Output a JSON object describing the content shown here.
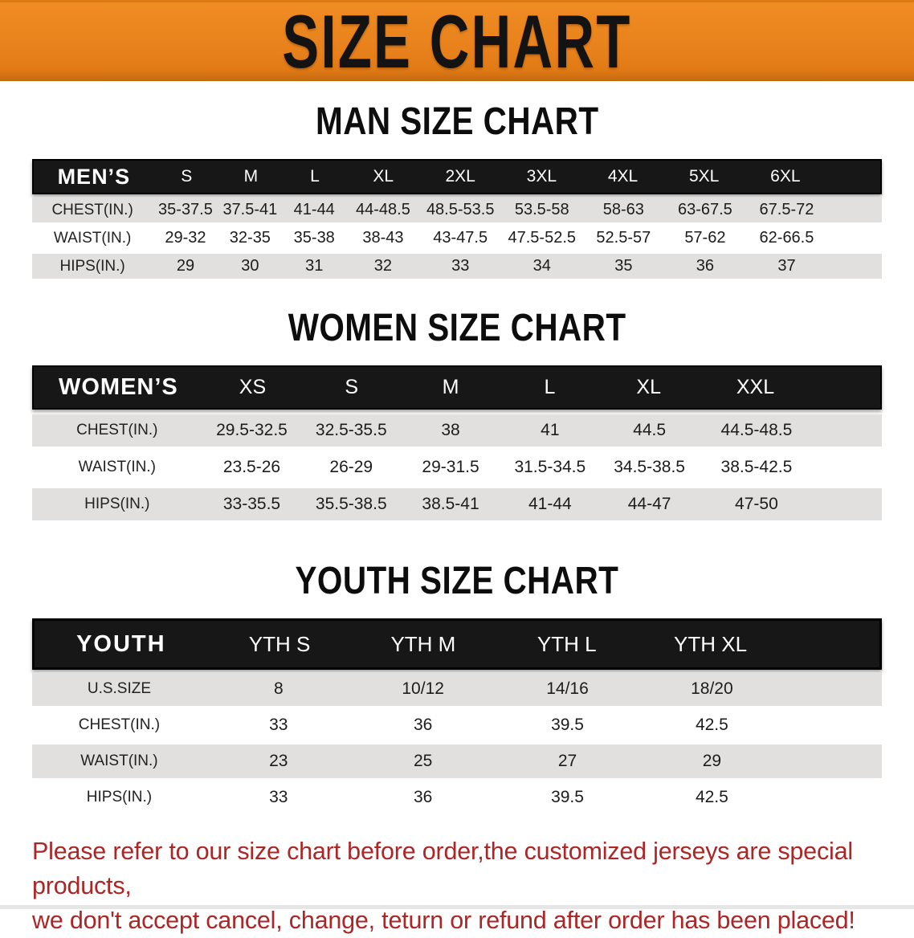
{
  "banner": {
    "title": "SIZE CHART"
  },
  "sections": [
    {
      "heading": "MAN SIZE CHART",
      "table": {
        "label": "MEN’S",
        "columns": [
          "S",
          "M",
          "L",
          "XL",
          "2XL",
          "3XL",
          "4XL",
          "5XL",
          "6XL"
        ],
        "rows": [
          {
            "label": "CHEST(IN.)",
            "values": [
              "35-37.5",
              "37.5-41",
              "41-44",
              "44-48.5",
              "48.5-53.5",
              "53.5-58",
              "58-63",
              "63-67.5",
              "67.5-72"
            ]
          },
          {
            "label": "WAIST(IN.)",
            "values": [
              "29-32",
              "32-35",
              "35-38",
              "38-43",
              "43-47.5",
              "47.5-52.5",
              "52.5-57",
              "57-62",
              "62-66.5"
            ]
          },
          {
            "label": "HIPS(IN.)",
            "values": [
              "29",
              "30",
              "31",
              "32",
              "33",
              "34",
              "35",
              "36",
              "37"
            ]
          }
        ]
      }
    },
    {
      "heading": "WOMEN SIZE CHART",
      "table": {
        "label": "WOMEN’S",
        "columns": [
          "XS",
          "S",
          "M",
          "L",
          "XL",
          "XXL"
        ],
        "rows": [
          {
            "label": "CHEST(IN.)",
            "values": [
              "29.5-32.5",
              "32.5-35.5",
              "38",
              "41",
              "44.5",
              "44.5-48.5"
            ]
          },
          {
            "label": "WAIST(IN.)",
            "values": [
              "23.5-26",
              "26-29",
              "29-31.5",
              "31.5-34.5",
              "34.5-38.5",
              "38.5-42.5"
            ]
          },
          {
            "label": "HIPS(IN.)",
            "values": [
              "33-35.5",
              "35.5-38.5",
              "38.5-41",
              "41-44",
              "44-47",
              "47-50"
            ]
          }
        ]
      }
    },
    {
      "heading": "YOUTH SIZE CHART",
      "table": {
        "label": "YOUTH",
        "columns": [
          "YTH S",
          "YTH M",
          "YTH L",
          "YTH XL"
        ],
        "rows": [
          {
            "label": "U.S.SIZE",
            "values": [
              "8",
              "10/12",
              "14/16",
              "18/20"
            ]
          },
          {
            "label": "CHEST(IN.)",
            "values": [
              "33",
              "36",
              "39.5",
              "42.5"
            ]
          },
          {
            "label": "WAIST(IN.)",
            "values": [
              "23",
              "25",
              "27",
              "29"
            ]
          },
          {
            "label": "HIPS(IN.)",
            "values": [
              "33",
              "36",
              "39.5",
              "42.5"
            ]
          }
        ]
      }
    }
  ],
  "disclaimer": {
    "line1": "Please refer to our size chart before order,the customized jerseys are special products,",
    "line2": "we don't accept cancel, change, teturn or refund after order has been placed!"
  },
  "colors": {
    "banner_orange": "#E8811C",
    "header_bar_black": "#171717",
    "row_stripe_gray": "#E1E0DE",
    "disclaimer_red": "#AE2525",
    "heading_black": "#0D0D0D"
  }
}
